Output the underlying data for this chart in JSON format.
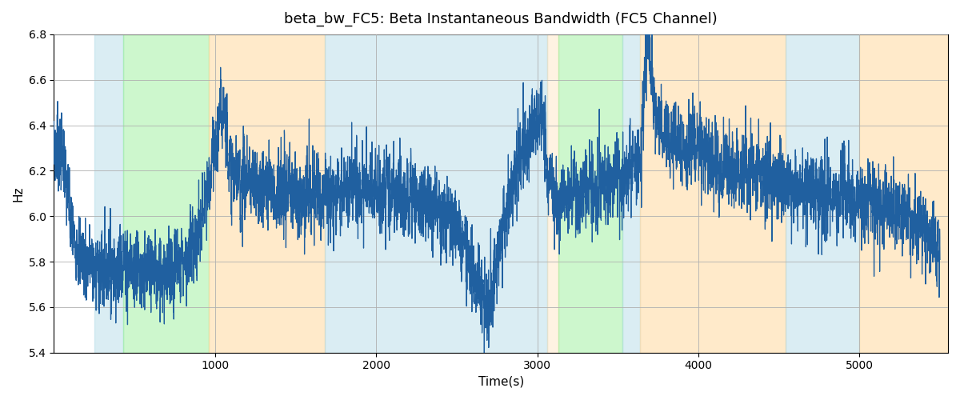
{
  "title": "beta_bw_FC5: Beta Instantaneous Bandwidth (FC5 Channel)",
  "xlabel": "Time(s)",
  "ylabel": "Hz",
  "ylim": [
    5.4,
    6.8
  ],
  "xlim": [
    0,
    5550
  ],
  "line_color": "#2060a0",
  "line_width": 0.9,
  "grid_color": "#b0b0b0",
  "regions": [
    {
      "start": 250,
      "end": 430,
      "color": "#add8e6",
      "alpha": 0.45
    },
    {
      "start": 430,
      "end": 960,
      "color": "#90ee90",
      "alpha": 0.45
    },
    {
      "start": 960,
      "end": 1680,
      "color": "#ffd9a0",
      "alpha": 0.55
    },
    {
      "start": 1680,
      "end": 3060,
      "color": "#add8e6",
      "alpha": 0.45
    },
    {
      "start": 3060,
      "end": 3130,
      "color": "#ffd9a0",
      "alpha": 0.3
    },
    {
      "start": 3130,
      "end": 3530,
      "color": "#90ee90",
      "alpha": 0.45
    },
    {
      "start": 3530,
      "end": 3640,
      "color": "#add8e6",
      "alpha": 0.45
    },
    {
      "start": 3640,
      "end": 4540,
      "color": "#ffd9a0",
      "alpha": 0.55
    },
    {
      "start": 4540,
      "end": 5000,
      "color": "#add8e6",
      "alpha": 0.45
    },
    {
      "start": 5000,
      "end": 5550,
      "color": "#ffd9a0",
      "alpha": 0.55
    }
  ],
  "xticks": [
    1000,
    2000,
    3000,
    4000,
    5000
  ],
  "yticks": [
    5.4,
    5.6,
    5.8,
    6.0,
    6.2,
    6.4,
    6.6,
    6.8
  ]
}
